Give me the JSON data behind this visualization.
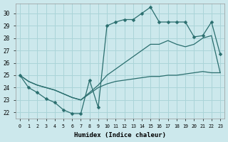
{
  "xlabel": "Humidex (Indice chaleur)",
  "background_color": "#cce8ec",
  "line_color": "#2a6e6e",
  "grid_color": "#aad4d8",
  "xlim": [
    -0.5,
    23.5
  ],
  "ylim": [
    21.5,
    30.8
  ],
  "yticks": [
    22,
    23,
    24,
    25,
    26,
    27,
    28,
    29,
    30
  ],
  "xticks": [
    0,
    1,
    2,
    3,
    4,
    5,
    6,
    7,
    8,
    9,
    10,
    11,
    12,
    13,
    14,
    15,
    16,
    17,
    18,
    19,
    20,
    21,
    22,
    23
  ],
  "hours": [
    0,
    1,
    2,
    3,
    4,
    5,
    6,
    7,
    8,
    9,
    10,
    11,
    12,
    13,
    14,
    15,
    16,
    17,
    18,
    19,
    20,
    21,
    22,
    23
  ],
  "line_top": [
    25.0,
    24.0,
    23.6,
    23.1,
    22.8,
    22.2,
    21.9,
    21.9,
    24.6,
    22.4,
    29.0,
    29.3,
    29.5,
    29.5,
    30.0,
    30.5,
    29.3,
    29.3,
    29.3,
    29.3,
    28.1,
    28.2,
    29.3,
    26.7
  ],
  "line_mid": [
    25.0,
    24.5,
    24.2,
    24.0,
    23.8,
    23.5,
    23.2,
    23.0,
    23.6,
    24.2,
    25.0,
    25.5,
    26.0,
    26.5,
    27.0,
    27.5,
    27.5,
    27.8,
    27.5,
    27.3,
    27.5,
    28.0,
    28.2,
    25.2
  ],
  "line_bot": [
    25.0,
    24.5,
    24.2,
    24.0,
    23.8,
    23.5,
    23.2,
    23.0,
    23.5,
    24.0,
    24.3,
    24.5,
    24.6,
    24.7,
    24.8,
    24.9,
    24.9,
    25.0,
    25.0,
    25.1,
    25.2,
    25.3,
    25.2,
    25.2
  ]
}
